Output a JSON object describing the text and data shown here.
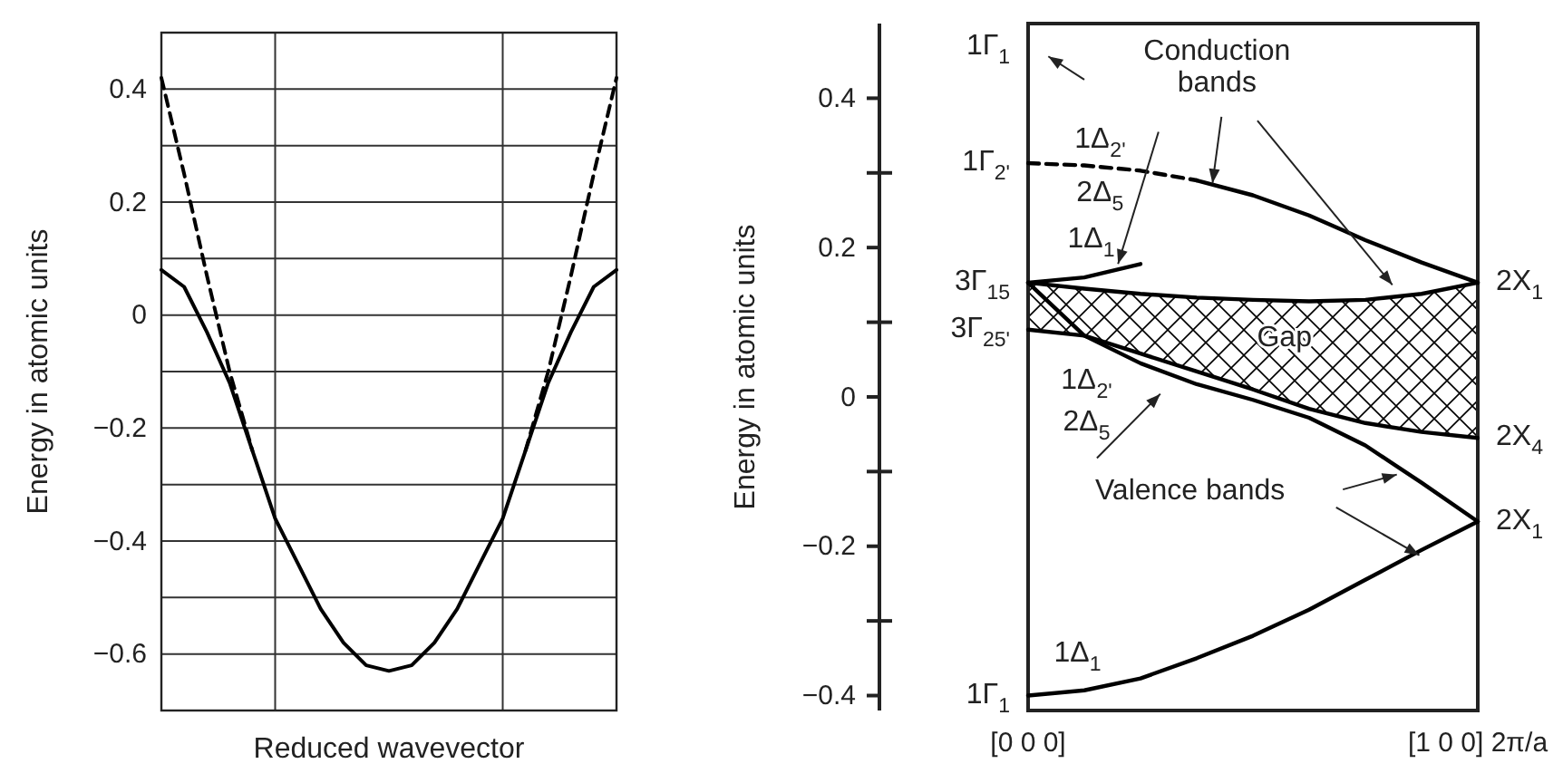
{
  "chart_data": [
    {
      "type": "line",
      "xlabel": "Reduced wavevector",
      "ylabel": "Energy in atomic units",
      "categories": [
        null,
        null,
        null,
        null,
        null,
        null,
        null,
        null,
        null,
        null,
        null,
        null,
        null,
        null,
        null,
        null,
        null,
        null,
        null,
        null,
        null
      ],
      "ylim": [
        -0.7,
        0.5
      ],
      "yticks": [
        0.4,
        {
          "value": 0.3,
          "label": null
        },
        0.2,
        {
          "value": 0.1,
          "label": null
        },
        0,
        {
          "value": -0.1,
          "label": null
        },
        {
          "value": -0.2,
          "label": "−0.2"
        },
        {
          "value": -0.3,
          "label": null
        },
        {
          "value": -0.4,
          "label": "−0.4"
        },
        {
          "value": -0.5,
          "label": null
        },
        {
          "value": -0.6,
          "label": "−0.6"
        }
      ],
      "grid": "y",
      "series": [
        {
          "color": "#000000",
          "values": [
            0.08,
            0.05,
            -0.03,
            -0.12,
            -0.24,
            -0.36,
            -0.44,
            -0.52,
            -0.58,
            -0.62,
            -0.63,
            -0.62,
            -0.58,
            -0.52,
            -0.44,
            -0.36,
            -0.24,
            -0.12,
            -0.03,
            0.05,
            0.08
          ]
        },
        {
          "color": "#000000",
          "line_style": "dashed",
          "values": [
            0.42,
            0.25,
            0.07,
            -0.1,
            -0.24,
            null,
            null,
            null,
            null,
            null,
            null,
            null,
            null,
            null,
            null,
            null,
            null,
            null,
            null,
            null,
            null
          ]
        },
        {
          "color": "#000000",
          "line_style": "dashed",
          "values": [
            null,
            null,
            null,
            null,
            null,
            null,
            null,
            null,
            null,
            null,
            null,
            null,
            null,
            null,
            null,
            null,
            -0.24,
            -0.1,
            0.07,
            0.25,
            0.42
          ]
        }
      ]
    },
    {
      "type": "line",
      "ylabel": "Energy in atomic units",
      "categories": [
        "[0 0 0]",
        null,
        null,
        null,
        null,
        null,
        null,
        null,
        "[1 0 0] 2π/a"
      ],
      "ylim": [
        -0.42,
        0.5
      ],
      "yticks": [
        0.4,
        0.2,
        0,
        {
          "value": -0.2,
          "label": "−0.2"
        },
        {
          "value": -0.4,
          "label": "−0.4"
        }
      ],
      "series": [
        {
          "color": "#000000",
          "line_style": "dashed",
          "values": [
            0.313,
            0.31,
            0.303,
            0.29,
            null,
            null,
            null,
            null,
            null
          ]
        },
        {
          "color": "#000000",
          "values": [
            null,
            null,
            null,
            0.29,
            0.27,
            0.243,
            0.21,
            0.18,
            0.153
          ]
        },
        {
          "color": "#000000",
          "values": [
            0.153,
            0.16,
            0.178,
            null,
            null,
            null,
            null,
            null,
            null
          ]
        },
        {
          "color": "#000000",
          "values": [
            0.153,
            0.145,
            0.138,
            0.133,
            0.13,
            0.128,
            0.13,
            0.138,
            0.153
          ]
        },
        {
          "color": "#000000",
          "values": [
            0.09,
            0.082,
            0.058,
            0.034,
            0.01,
            -0.016,
            -0.035,
            -0.047,
            -0.055
          ]
        },
        {
          "color": "#000000",
          "values": [
            0.153,
            0.082,
            0.045,
            0.017,
            -0.004,
            -0.028,
            -0.065,
            -0.115,
            -0.167
          ]
        },
        {
          "color": "#000000",
          "values": [
            -0.4,
            -0.393,
            -0.377,
            -0.35,
            -0.32,
            -0.285,
            -0.245,
            -0.205,
            -0.167
          ]
        }
      ],
      "annotations": [
        "1Γ$_{1}$",
        {
          "text": "1Γ$_{2'}$",
          "x": "[0 0 0]",
          "y": 0.313
        },
        {
          "text": "3Γ$_{15}$",
          "x": "[0 0 0]",
          "y": 0.153
        },
        {
          "text": "3Γ$_{25'}$",
          "x": "[0 0 0]",
          "y": 0.09
        },
        {
          "text": "1Γ$_{1}$",
          "x": "[0 0 0]",
          "y": -0.4
        },
        {
          "text": "2X$_{1}$",
          "x": "[1 0 0] 2π/a",
          "y": 0.153
        },
        {
          "text": "2X$_{4}$",
          "x": "[1 0 0] 2π/a",
          "y": -0.055
        },
        {
          "text": "2X$_{1}$",
          "x": "[1 0 0] 2π/a",
          "y": -0.167
        },
        "1Δ$_{2'}$",
        "2Δ$_{5}$",
        "1Δ$_{1}$",
        "1Δ$_{2'}$",
        "2Δ$_{5}$",
        "1Δ$_{1}$",
        {
          "text": "Conduction\nbands",
          "y": 0.286
        },
        "Gap",
        "Valence bands"
      ]
    }
  ]
}
